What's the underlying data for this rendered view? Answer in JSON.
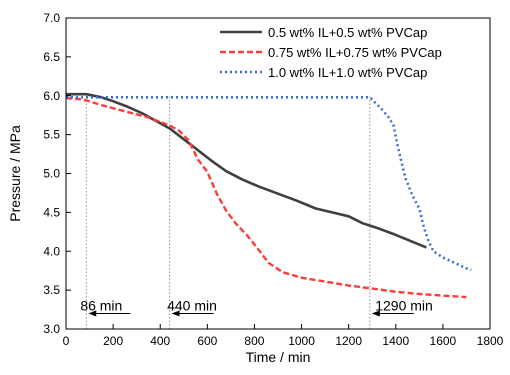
{
  "chart_data": {
    "type": "line",
    "xlabel": "Time / min",
    "ylabel": "Pressure / MPa",
    "xlim": [
      0,
      1800
    ],
    "ylim": [
      3.0,
      7.0
    ],
    "xticks": [
      0,
      200,
      400,
      600,
      800,
      1000,
      1200,
      1400,
      1600,
      1800
    ],
    "yticks": [
      "3.0",
      "3.5",
      "4.0",
      "4.5",
      "5.0",
      "5.5",
      "6.0",
      "6.5",
      "7.0"
    ],
    "grid": false,
    "legend_position": "top-right",
    "series": [
      {
        "name": "0.5 wt% IL+0.5 wt% PVCap",
        "color": "#404040",
        "style": "solid",
        "points": [
          [
            0,
            6.02
          ],
          [
            40,
            6.02
          ],
          [
            86,
            6.02
          ],
          [
            150,
            5.98
          ],
          [
            200,
            5.93
          ],
          [
            260,
            5.86
          ],
          [
            320,
            5.78
          ],
          [
            380,
            5.68
          ],
          [
            440,
            5.58
          ],
          [
            500,
            5.44
          ],
          [
            560,
            5.3
          ],
          [
            620,
            5.16
          ],
          [
            680,
            5.03
          ],
          [
            750,
            4.92
          ],
          [
            820,
            4.83
          ],
          [
            900,
            4.74
          ],
          [
            980,
            4.65
          ],
          [
            1060,
            4.55
          ],
          [
            1130,
            4.5
          ],
          [
            1200,
            4.45
          ],
          [
            1260,
            4.36
          ],
          [
            1320,
            4.3
          ],
          [
            1400,
            4.21
          ],
          [
            1480,
            4.11
          ],
          [
            1530,
            4.05
          ]
        ]
      },
      {
        "name": "0.75 wt% IL+0.75 wt% PVCap",
        "color": "#ff3b3b",
        "style": "dashed",
        "points": [
          [
            0,
            5.97
          ],
          [
            50,
            5.96
          ],
          [
            86,
            5.94
          ],
          [
            150,
            5.88
          ],
          [
            250,
            5.8
          ],
          [
            350,
            5.72
          ],
          [
            420,
            5.64
          ],
          [
            440,
            5.62
          ],
          [
            480,
            5.55
          ],
          [
            520,
            5.43
          ],
          [
            560,
            5.18
          ],
          [
            600,
            5.02
          ],
          [
            640,
            4.74
          ],
          [
            680,
            4.52
          ],
          [
            720,
            4.36
          ],
          [
            770,
            4.2
          ],
          [
            810,
            4.05
          ],
          [
            860,
            3.85
          ],
          [
            920,
            3.73
          ],
          [
            1000,
            3.66
          ],
          [
            1100,
            3.61
          ],
          [
            1200,
            3.56
          ],
          [
            1300,
            3.52
          ],
          [
            1400,
            3.48
          ],
          [
            1500,
            3.45
          ],
          [
            1600,
            3.43
          ],
          [
            1700,
            3.41
          ]
        ]
      },
      {
        "name": "1.0 wt% IL+1.0 wt% PVCap",
        "color": "#3a6fd8",
        "style": "dotted",
        "points": [
          [
            0,
            5.98
          ],
          [
            200,
            5.98
          ],
          [
            400,
            5.98
          ],
          [
            600,
            5.98
          ],
          [
            800,
            5.98
          ],
          [
            1000,
            5.98
          ],
          [
            1200,
            5.98
          ],
          [
            1290,
            5.98
          ],
          [
            1310,
            5.92
          ],
          [
            1340,
            5.83
          ],
          [
            1370,
            5.72
          ],
          [
            1390,
            5.62
          ],
          [
            1410,
            5.33
          ],
          [
            1440,
            4.95
          ],
          [
            1470,
            4.72
          ],
          [
            1500,
            4.55
          ],
          [
            1520,
            4.3
          ],
          [
            1540,
            4.12
          ],
          [
            1560,
            4.0
          ],
          [
            1600,
            3.92
          ],
          [
            1650,
            3.85
          ],
          [
            1700,
            3.78
          ],
          [
            1720,
            3.76
          ]
        ]
      }
    ],
    "annotations": [
      {
        "label": "86 min",
        "x": 86,
        "arrow_y": 3.2,
        "label_x": 150,
        "label_y": 3.3
      },
      {
        "label": "440 min",
        "x": 440,
        "arrow_y": 3.2,
        "label_x": 535,
        "label_y": 3.3
      },
      {
        "label": "1290 min",
        "x": 1290,
        "arrow_y": 3.2,
        "label_x": 1435,
        "label_y": 3.3
      }
    ]
  }
}
